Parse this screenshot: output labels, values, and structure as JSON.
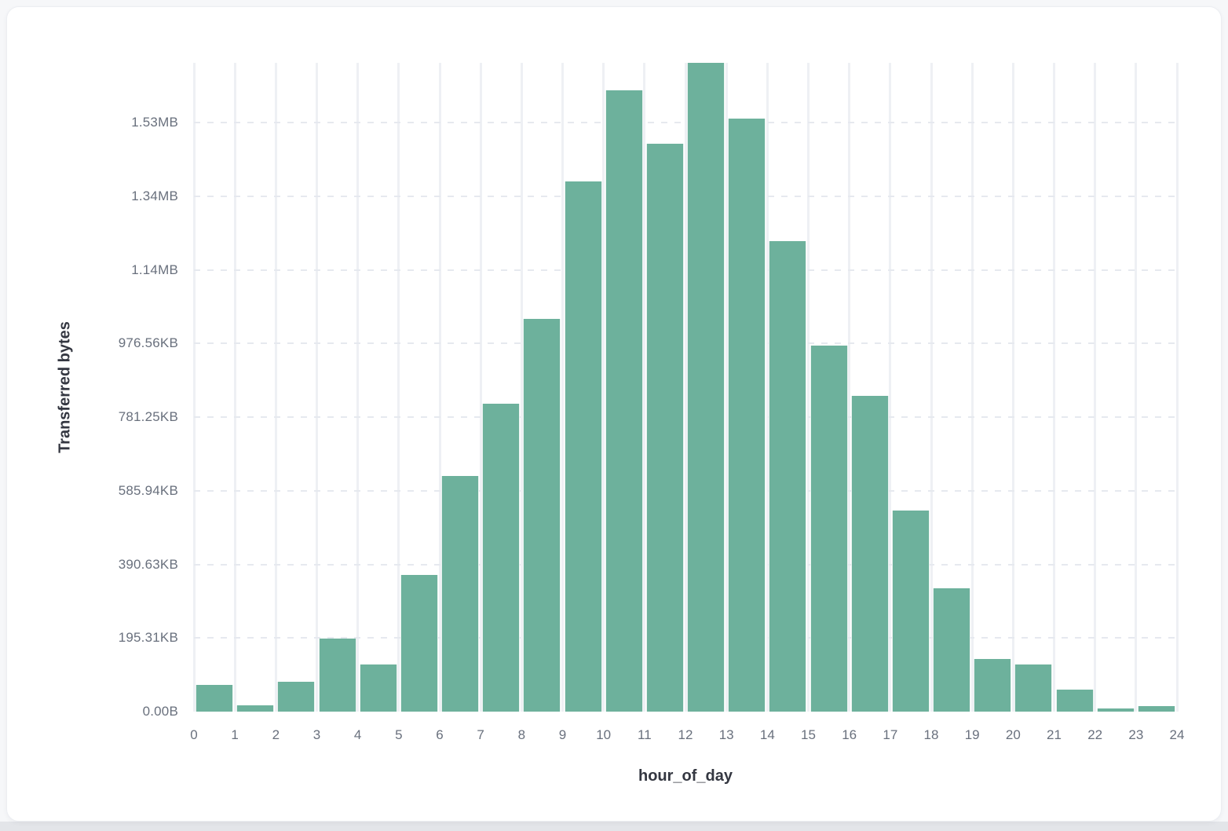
{
  "panel": {
    "background_color": "#ffffff",
    "page_background_color": "#f6f7f9"
  },
  "chart_data": {
    "type": "bar",
    "title": "",
    "xlabel": "hour_of_day",
    "ylabel": "Transferred bytes",
    "x_bin_start": [
      0,
      1,
      2,
      3,
      4,
      5,
      6,
      7,
      8,
      9,
      10,
      11,
      12,
      13,
      14,
      15,
      16,
      17,
      18,
      19,
      20,
      21,
      22,
      23
    ],
    "values": [
      73000,
      16500,
      80500,
      198500,
      128000,
      371500,
      641000,
      837500,
      1068000,
      1441000,
      1689000,
      1543000,
      1763000,
      1611000,
      1279000,
      995000,
      857000,
      546500,
      335000,
      143000,
      128500,
      60000,
      8000,
      15000
    ],
    "values_unit": "bytes (estimated from axis)",
    "xticks": [
      "0",
      "1",
      "2",
      "3",
      "4",
      "5",
      "6",
      "7",
      "8",
      "9",
      "10",
      "11",
      "12",
      "13",
      "14",
      "15",
      "16",
      "17",
      "18",
      "19",
      "20",
      "21",
      "22",
      "23",
      "24"
    ],
    "ytick_labels": [
      "0.00B",
      "195.31KB",
      "390.63KB",
      "585.94KB",
      "781.25KB",
      "976.56KB",
      "1.14MB",
      "1.34MB",
      "1.53MB"
    ],
    "ytick_values": [
      0,
      200000,
      400000,
      600000,
      800000,
      1000000,
      1200000,
      1400000,
      1600000
    ],
    "xlim": [
      0,
      24
    ],
    "ylim": [
      0,
      1763000
    ],
    "grid": true,
    "legend": "none",
    "bar_color": "#6db19c",
    "tick_text_color": "#69707d",
    "axis_title_color": "#343741",
    "vertical_gridline_color": "#eef0f4",
    "horizontal_gridline_color": "#e6e9ef"
  }
}
